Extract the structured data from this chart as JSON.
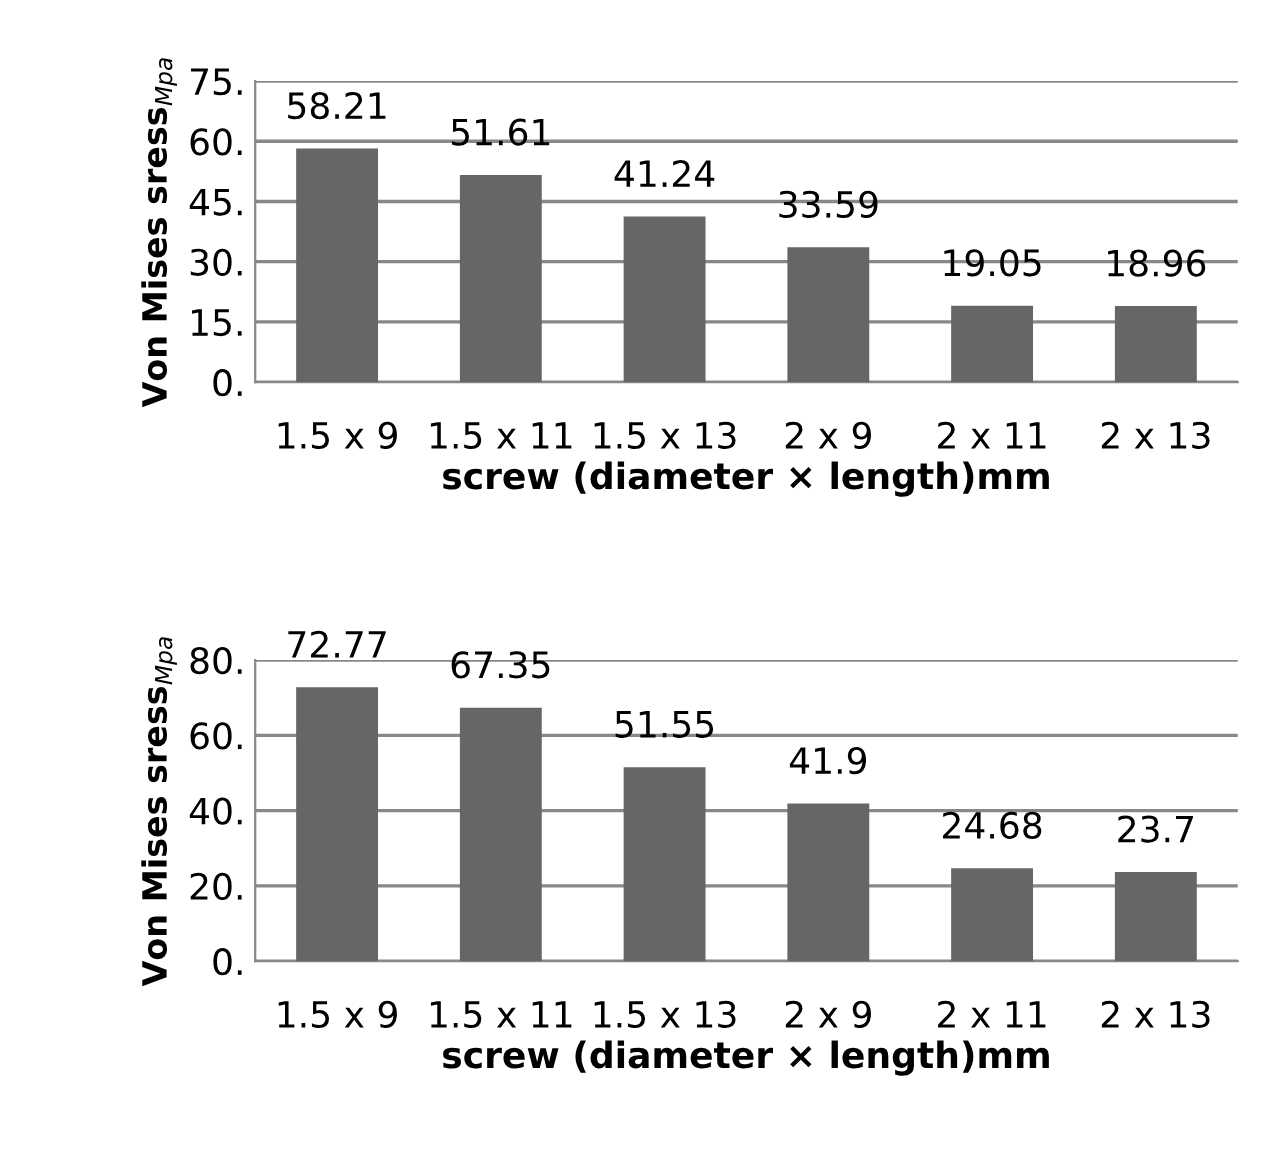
{
  "chart_data": [
    {
      "type": "bar",
      "xlabel": "screw (diameter × length)mm",
      "ylabel": "Von Mises sress$_{Mpa}$",
      "categories": [
        "1.5 x 9",
        "1.5 x 11",
        "1.5 x 13",
        "2 x 9",
        "2 x 11",
        "2 x 13"
      ],
      "values": [
        58.21,
        51.61,
        41.24,
        33.59,
        19.05,
        18.96
      ],
      "color": "#666666",
      "ylim": [
        0,
        75
      ],
      "yticks": [
        {
          "value": 0,
          "label": "0."
        },
        {
          "value": 15,
          "label": "15."
        },
        {
          "value": 30,
          "label": "30."
        },
        {
          "value": 45,
          "label": "45."
        },
        {
          "value": 60,
          "label": "60."
        },
        {
          "value": 75,
          "label": "75."
        }
      ],
      "grid": "y",
      "data_labels": true
    },
    {
      "type": "bar",
      "xlabel": "screw (diameter × length)mm",
      "ylabel": "Von Mises sress$_{Mpa}$",
      "categories": [
        "1.5 x 9",
        "1.5 x 11",
        "1.5 x 13",
        "2 x 9",
        "2 x 11",
        "2 x 13"
      ],
      "values": [
        72.77,
        67.35,
        51.55,
        41.9,
        24.68,
        23.7
      ],
      "color": "#666666",
      "ylim": [
        0,
        80
      ],
      "yticks": [
        {
          "value": 0,
          "label": "0."
        },
        {
          "value": 20,
          "label": "20."
        },
        {
          "value": 40,
          "label": "40."
        },
        {
          "value": 60,
          "label": "60."
        },
        {
          "value": 80,
          "label": "80."
        }
      ],
      "grid": "y",
      "data_labels": true
    }
  ]
}
